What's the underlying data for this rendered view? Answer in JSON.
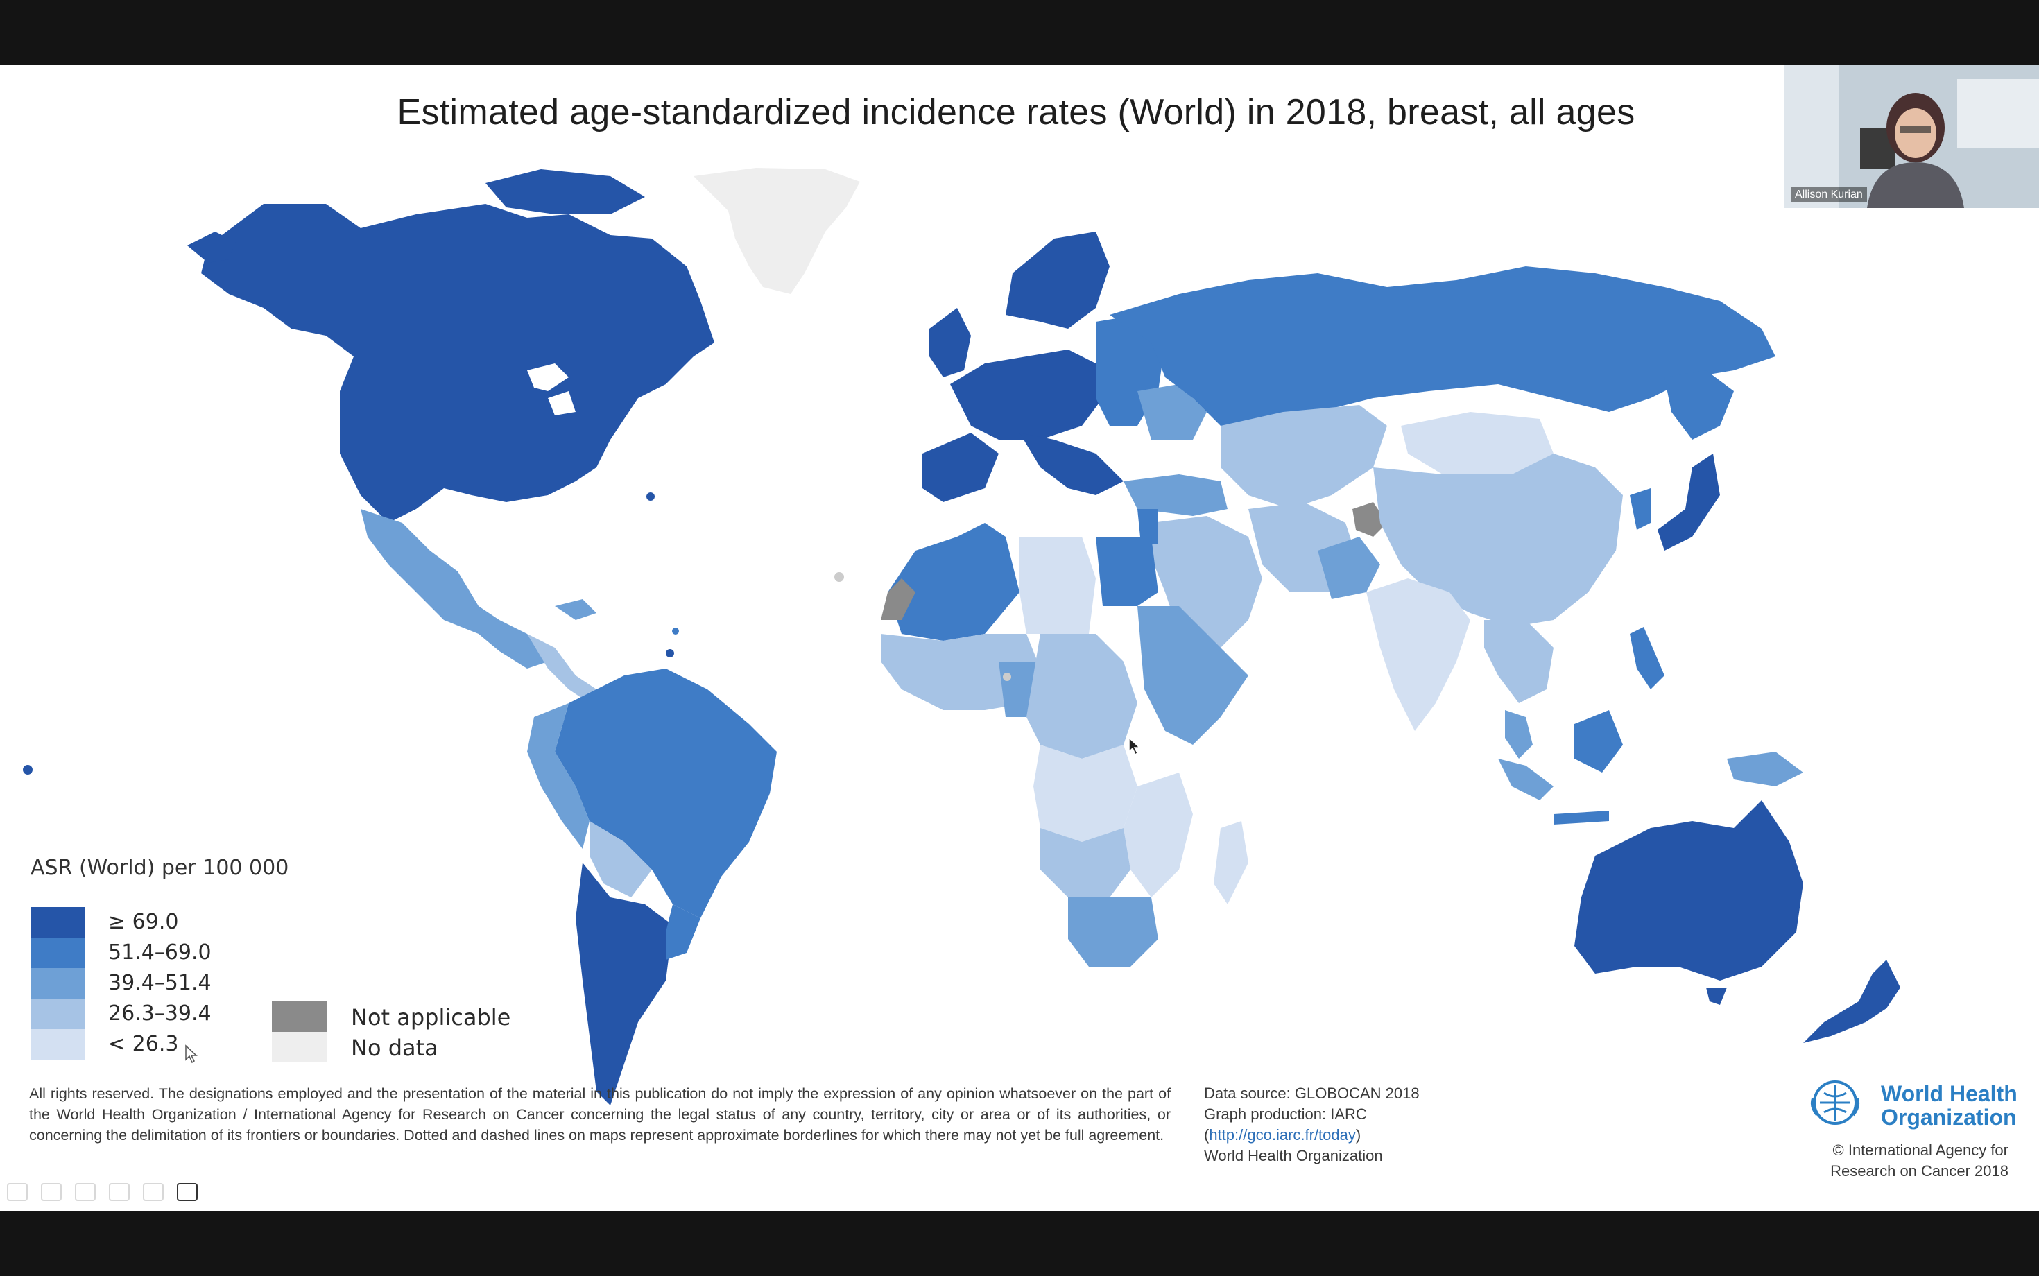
{
  "slide": {
    "title": "Estimated age-standardized incidence rates (World) in 2018, breast, all ages"
  },
  "legend": {
    "title": "ASR (World) per 100 000",
    "items": [
      {
        "label": "≥ 69.0",
        "color": "#2555a8"
      },
      {
        "label": "51.4–69.0",
        "color": "#3f7cc6"
      },
      {
        "label": "39.4–51.4",
        "color": "#6ea0d6"
      },
      {
        "label": "26.3–39.4",
        "color": "#a6c3e5"
      },
      {
        "label": "< 26.3",
        "color": "#d3e0f2"
      }
    ],
    "extra": [
      {
        "label": "Not applicable",
        "color": "#8a8a8a"
      },
      {
        "label": "No data",
        "color": "#eeeeee"
      }
    ]
  },
  "disclaimer": "All rights reserved. The designations employed and the presentation of the material in this publication do not imply the expression of any opinion whatsoever on the part of the World Health Organization / International Agency for Research on Cancer concerning the legal status of any country, territory, city or area or of its authorities, or concerning the delimitation of its frontiers or boundaries. Dotted and dashed lines on maps represent approximate borderlines for which there may not yet be full agreement.",
  "source": {
    "line1": "Data source: GLOBOCAN 2018",
    "line2": "Graph production: IARC",
    "link": "http://gco.iarc.fr/today",
    "line4": "World Health Organization"
  },
  "who": {
    "line1": "World Health",
    "line2": "Organization",
    "copyright1": "© International Agency for",
    "copyright2": "Research on Cancer 2018"
  },
  "webcam": {
    "participant_name": "Allison Kurian"
  }
}
